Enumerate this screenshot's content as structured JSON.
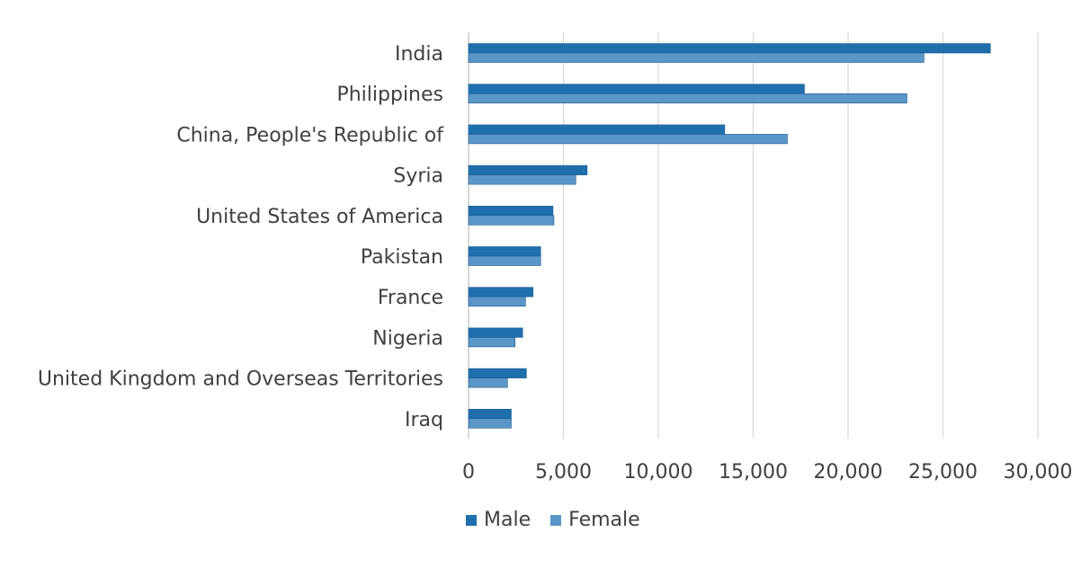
{
  "chart_data": {
    "type": "bar",
    "orientation": "horizontal",
    "categories": [
      "India",
      "Philippines",
      "China, People's Republic of",
      "Syria",
      "United States of America",
      "Pakistan",
      "France",
      "Nigeria",
      "United Kingdom and Overseas Territories",
      "Iraq"
    ],
    "series": [
      {
        "name": "Male",
        "color": "#1f6fad",
        "values": [
          27500,
          17700,
          13500,
          6250,
          4450,
          3800,
          3400,
          2850,
          3050,
          2250
        ]
      },
      {
        "name": "Female",
        "color": "#5b96c8",
        "values": [
          24000,
          23100,
          16800,
          5650,
          4500,
          3800,
          3000,
          2450,
          2050,
          2250
        ]
      }
    ],
    "x_ticks": [
      "0",
      "5,000",
      "10,000",
      "15,000",
      "20,000",
      "25,000",
      "30,000"
    ],
    "xlim": [
      0,
      30000
    ],
    "title": "",
    "xlabel": "",
    "ylabel": "",
    "grid": "vertical",
    "legend_position": "bottom"
  }
}
